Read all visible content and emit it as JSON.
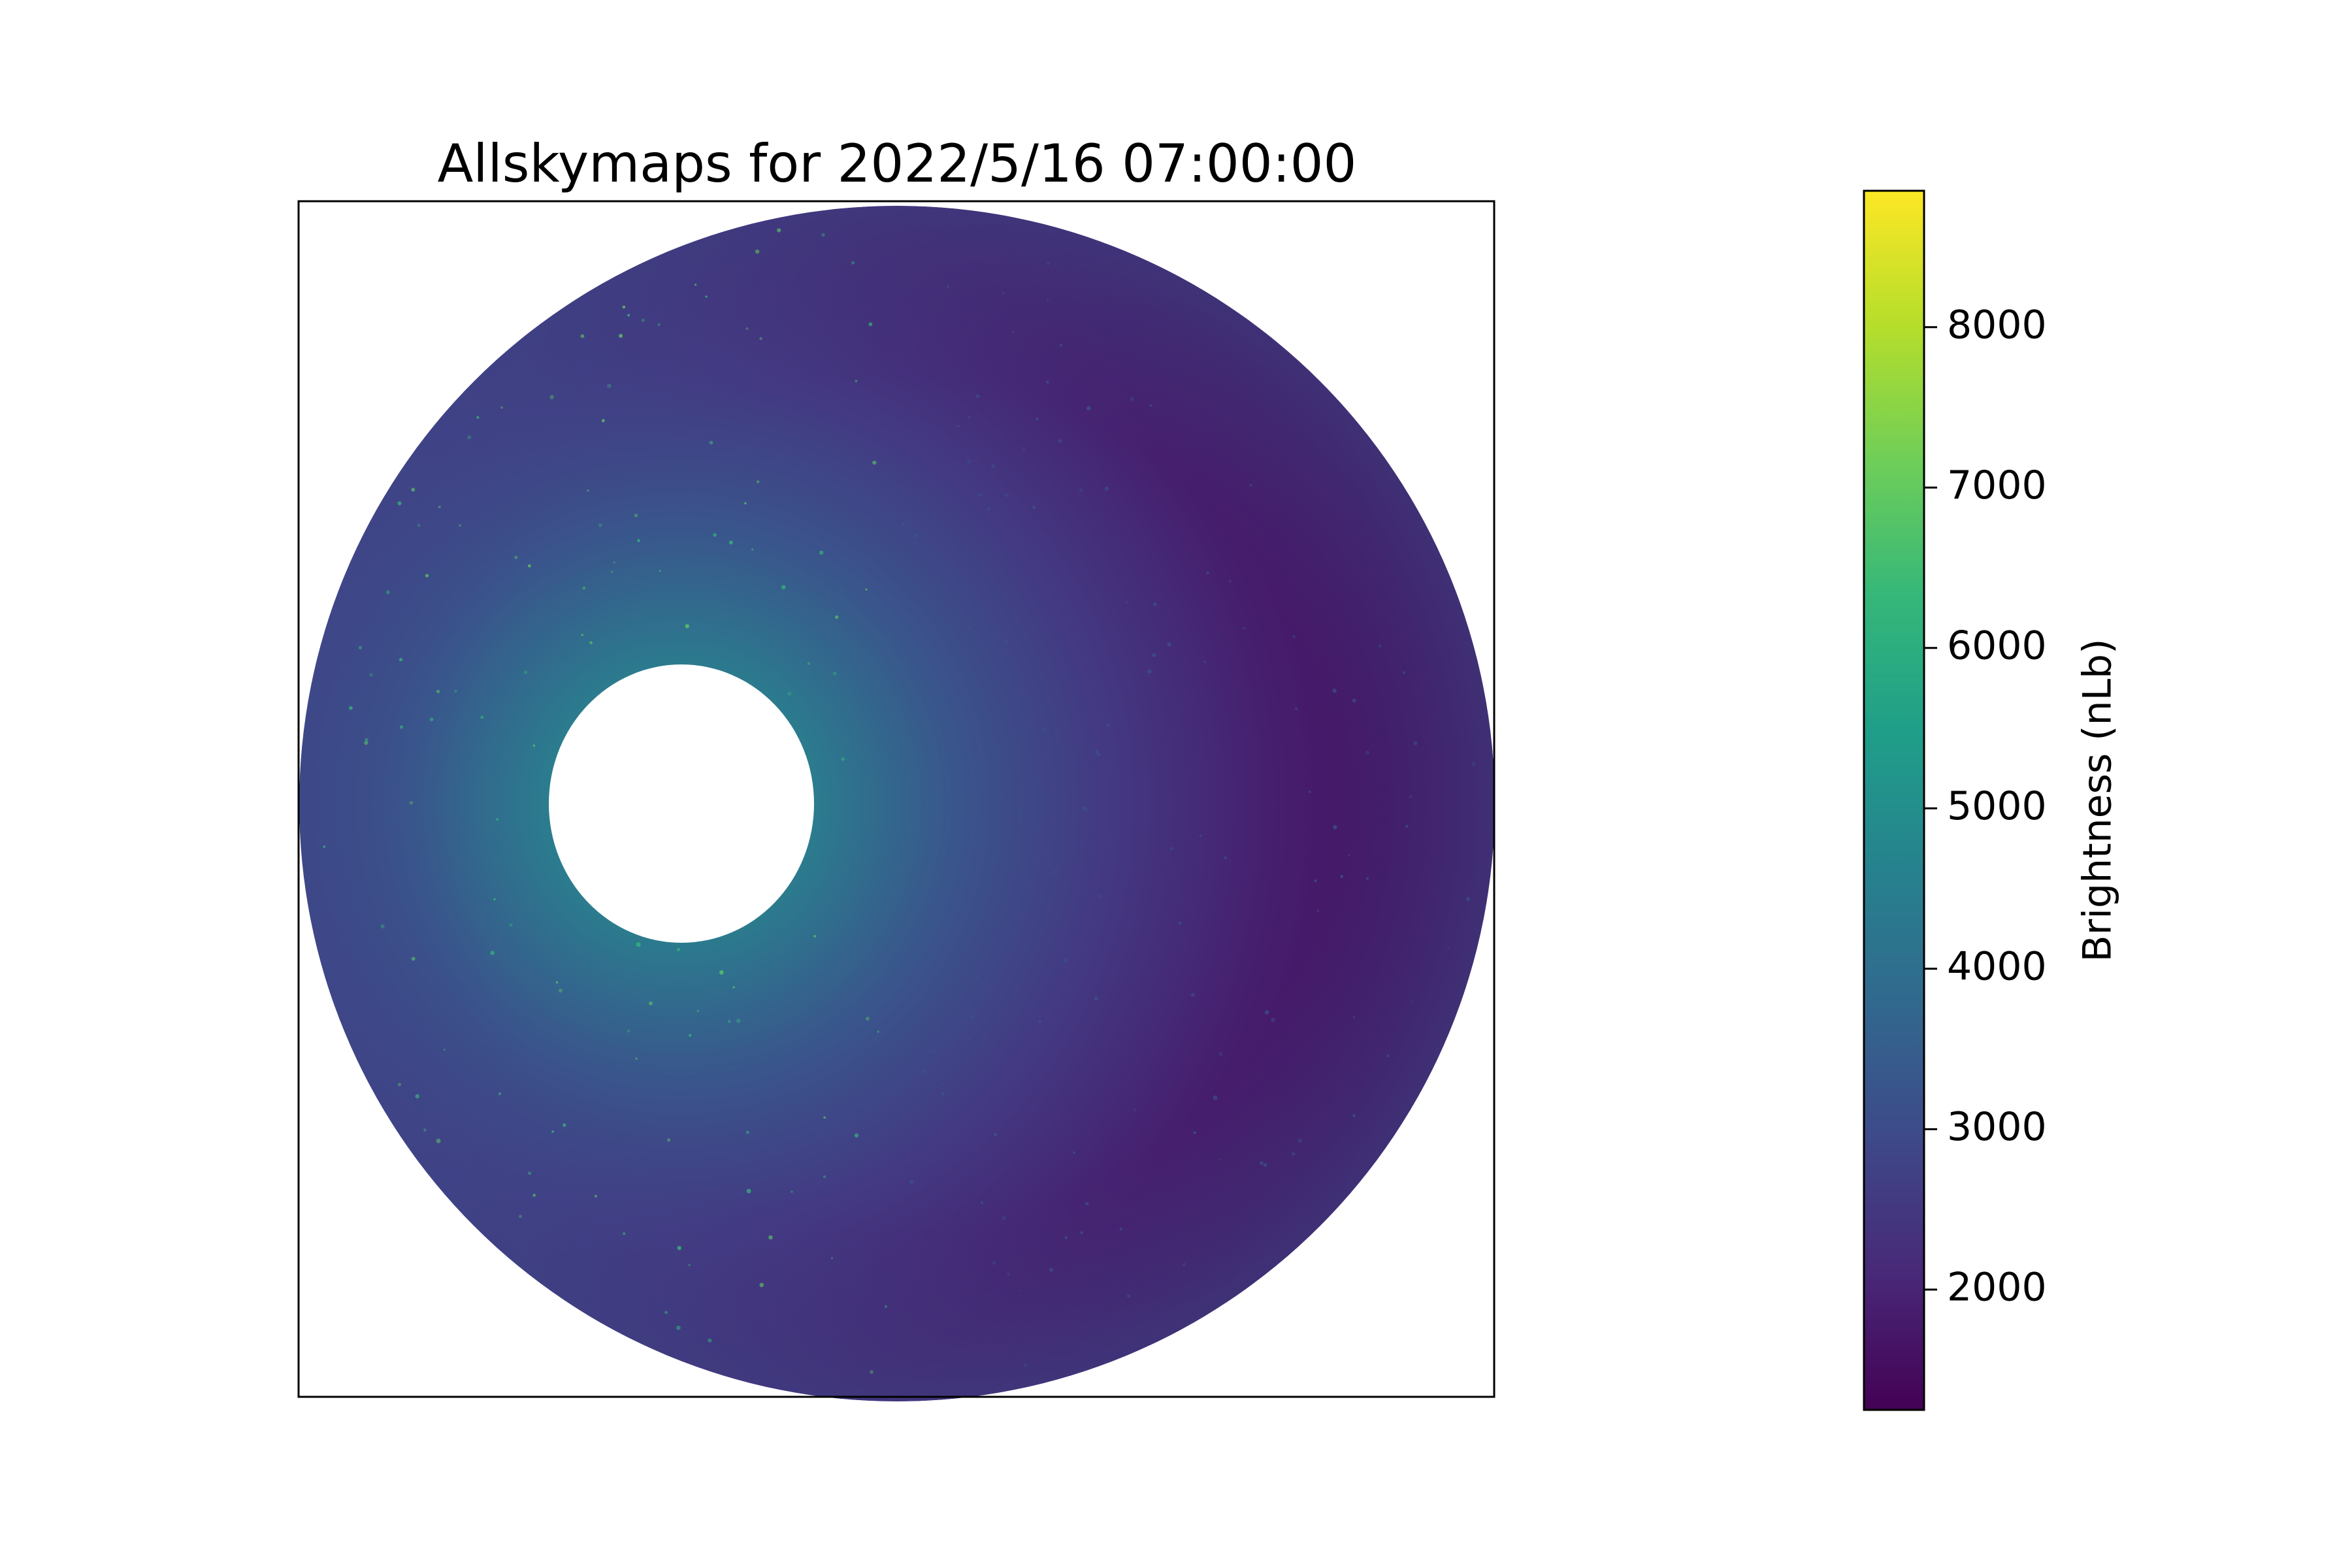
{
  "chart_data": {
    "type": "heatmap",
    "title": "Allskymaps for 2022/5/16 07:00:00",
    "xlabel": "",
    "ylabel": "",
    "grid": false,
    "map": {
      "shape": "circular all-sky projection",
      "masked_region": "white circular hole west of center (moon mask)",
      "brightest_region": "west side near masked hole, approx 5000-5500 nLb",
      "darkest_region": "east side, approx 1300-1500 nLb"
    },
    "colorbar": {
      "label": "Brightness (nLb)",
      "colormap": "viridis",
      "range": [
        1250,
        8850
      ],
      "ticks": [
        2000,
        3000,
        4000,
        5000,
        6000,
        7000,
        8000
      ],
      "tick_labels": [
        "2000",
        "3000",
        "4000",
        "5000",
        "6000",
        "7000",
        "8000"
      ],
      "stops": [
        "#440154",
        "#482878",
        "#3e4989",
        "#31688e",
        "#26828e",
        "#1f9e89",
        "#35b779",
        "#6ece58",
        "#b5de2b",
        "#fde725"
      ]
    }
  }
}
